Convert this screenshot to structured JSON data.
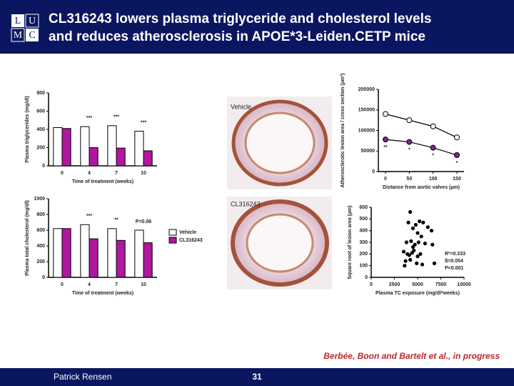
{
  "slide": {
    "logo": [
      "L",
      "U",
      "M",
      "C"
    ],
    "title_lines": [
      "CL316243 lowers plasma triglyceride and cholesterol levels",
      "and reduces atherosclerosis in APOE*3-Leiden.CETP mice"
    ],
    "images": [
      {
        "label": "Vehicle"
      },
      {
        "label": "CL316243"
      }
    ],
    "citation": "Berbée, Boon and Bartelt et al., in progress",
    "presenter": "Patrick Rensen",
    "page": "31"
  },
  "chart_data": [
    {
      "type": "bar",
      "ylabel": "Plasma triglycerides (mg/dl)",
      "xlabel": "Time of treatment (weeks)",
      "categories": [
        "0",
        "4",
        "7",
        "10"
      ],
      "series": [
        {
          "name": "Vehicle",
          "color": "#ffffff",
          "values": [
            420,
            430,
            440,
            380
          ]
        },
        {
          "name": "CL316243",
          "color": "#b0179f",
          "values": [
            410,
            200,
            195,
            165
          ]
        }
      ],
      "ylim": [
        0,
        800
      ],
      "yticks": [
        0,
        200,
        400,
        600,
        800
      ],
      "annotations": [
        "***",
        "***",
        "***"
      ],
      "legend": false
    },
    {
      "type": "bar",
      "ylabel": "Plasma total cholesterol (mg/dl)",
      "xlabel": "Time of treatment (weeks)",
      "categories": [
        "0",
        "4",
        "7",
        "10"
      ],
      "series": [
        {
          "name": "Vehicle",
          "color": "#ffffff",
          "values": [
            620,
            670,
            620,
            600
          ]
        },
        {
          "name": "CL316243",
          "color": "#b0179f",
          "values": [
            620,
            490,
            470,
            440
          ]
        }
      ],
      "ylim": [
        0,
        1000
      ],
      "yticks": [
        0,
        200,
        400,
        600,
        800,
        1000
      ],
      "annotations": [
        "***",
        "**",
        "P=0.06"
      ],
      "legend": true
    },
    {
      "type": "line",
      "ylabel": "Atherosclerotic lesion area / cross section (µm²)",
      "xlabel": "Distance from aortic valves (µm)",
      "x": [
        0,
        50,
        100,
        150
      ],
      "series": [
        {
          "name": "Vehicle",
          "color": "#ffffff",
          "values": [
            140000,
            125000,
            110000,
            83000
          ]
        },
        {
          "name": "CL316243",
          "color": "#7a2a8c",
          "values": [
            78000,
            72000,
            58000,
            40000
          ]
        }
      ],
      "xlim": [
        -15,
        165
      ],
      "xticks": [
        0,
        50,
        100,
        150
      ],
      "ylim": [
        0,
        200000
      ],
      "yticks": [
        0,
        50000,
        100000,
        150000,
        200000
      ],
      "annotations": [
        "**",
        "*",
        "*",
        "*"
      ]
    },
    {
      "type": "scatter",
      "ylabel": "Square root of lesion area (µm)",
      "xlabel": "Plasma TC exposure (mg/dl*weeks)",
      "x": [
        4200,
        4000,
        4800,
        5200,
        5600,
        6100,
        6500,
        4500,
        5000,
        5400,
        3800,
        4300,
        4700,
        5100,
        5800,
        6600,
        3500,
        3900,
        4100,
        4400,
        4600,
        5000,
        5300,
        3700,
        4200,
        4900,
        5500,
        3600,
        6800,
        4500
      ],
      "values": [
        560,
        470,
        450,
        480,
        470,
        430,
        400,
        420,
        380,
        350,
        300,
        310,
        280,
        300,
        290,
        280,
        220,
        200,
        190,
        210,
        230,
        180,
        200,
        140,
        150,
        120,
        110,
        100,
        120,
        260
      ],
      "color": "#000000",
      "xlim": [
        0,
        10000
      ],
      "xticks": [
        0,
        2500,
        5000,
        7500,
        10000
      ],
      "ylim": [
        0,
        600
      ],
      "yticks": [
        0,
        100,
        200,
        300,
        400,
        500,
        600
      ],
      "stats": [
        "R²=0.333",
        "ß=0.054",
        "P<0.001"
      ]
    }
  ]
}
